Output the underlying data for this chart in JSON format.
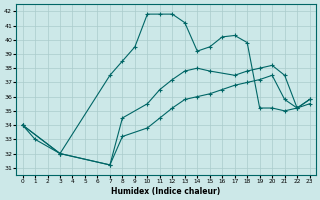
{
  "xlabel": "Humidex (Indice chaleur)",
  "xlim": [
    -0.5,
    23.5
  ],
  "ylim": [
    30.5,
    42.5
  ],
  "xticks": [
    0,
    1,
    2,
    3,
    4,
    5,
    6,
    7,
    8,
    9,
    10,
    11,
    12,
    13,
    14,
    15,
    16,
    17,
    18,
    19,
    20,
    21,
    22,
    23
  ],
  "yticks": [
    31,
    32,
    33,
    34,
    35,
    36,
    37,
    38,
    39,
    40,
    41,
    42
  ],
  "bg_color": "#cce8e8",
  "line_color": "#006666",
  "grid_color": "#aacccc",
  "series": [
    {
      "x": [
        0,
        1,
        3,
        7,
        8,
        9,
        10,
        11,
        12,
        13,
        14,
        15,
        16,
        17,
        18,
        19,
        20,
        21,
        22,
        23
      ],
      "y": [
        34,
        33,
        32,
        37.5,
        38.5,
        39.5,
        41.8,
        41.8,
        41.8,
        41.2,
        39.2,
        39.5,
        40.2,
        40.3,
        39.8,
        35.2,
        35.2,
        35.0,
        35.2,
        35.5
      ]
    },
    {
      "x": [
        0,
        3,
        7,
        8,
        10,
        11,
        12,
        13,
        14,
        15,
        17,
        18,
        19,
        20,
        21,
        22,
        23
      ],
      "y": [
        34,
        32,
        31.2,
        34.5,
        35.5,
        36.5,
        37.2,
        37.8,
        38.0,
        37.8,
        37.5,
        37.8,
        38.0,
        38.2,
        37.5,
        35.2,
        35.8
      ]
    },
    {
      "x": [
        0,
        3,
        7,
        8,
        10,
        11,
        12,
        13,
        14,
        15,
        16,
        17,
        18,
        19,
        20,
        21,
        22,
        23
      ],
      "y": [
        34,
        32,
        31.2,
        33.2,
        33.8,
        34.5,
        35.2,
        35.8,
        36.0,
        36.2,
        36.5,
        36.8,
        37.0,
        37.2,
        37.5,
        35.8,
        35.2,
        35.8
      ]
    }
  ]
}
